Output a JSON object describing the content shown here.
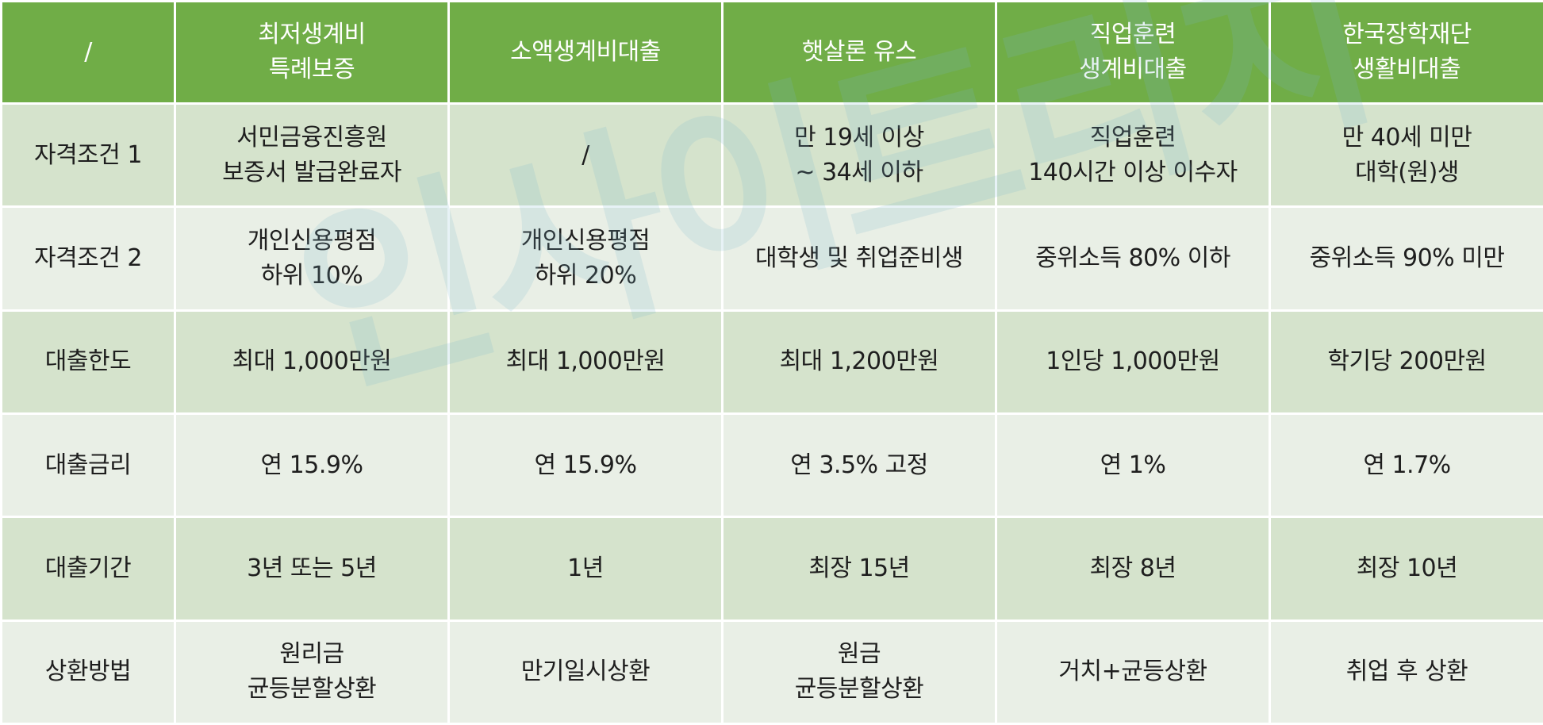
{
  "watermark": "인사이트리치",
  "table": {
    "headers": [
      "/",
      "최저생계비\n특례보증",
      "소액생계비대출",
      "햇살론 유스",
      "직업훈련\n생계비대출",
      "한국장학재단\n생활비대출"
    ],
    "rows": [
      [
        "자격조건 1",
        "서민금융진흥원\n보증서 발급완료자",
        "/",
        "만 19세 이상\n~ 34세 이하",
        "직업훈련\n140시간 이상 이수자",
        "만 40세 미만\n대학(원)생"
      ],
      [
        "자격조건 2",
        "개인신용평점\n하위 10%",
        "개인신용평점\n하위 20%",
        "대학생 및 취업준비생",
        "중위소득 80% 이하",
        "중위소득 90% 미만"
      ],
      [
        "대출한도",
        "최대 1,000만원",
        "최대 1,000만원",
        "최대 1,200만원",
        "1인당 1,000만원",
        "학기당 200만원"
      ],
      [
        "대출금리",
        "연 15.9%",
        "연 15.9%",
        "연 3.5% 고정",
        "연 1%",
        "연 1.7%"
      ],
      [
        "대출기간",
        "3년 또는 5년",
        "1년",
        "최장 15년",
        "최장 8년",
        "최장 10년"
      ],
      [
        "상환방법",
        "원리금\n균등분할상환",
        "만기일시상환",
        "원금\n균등분할상환",
        "거치+균등상환",
        "취업 후 상환"
      ]
    ]
  },
  "colors": {
    "header_bg": "#70ad47",
    "row_dark": "#d5e3cc",
    "row_light": "#e9efe6",
    "header_text": "#ffffff"
  }
}
